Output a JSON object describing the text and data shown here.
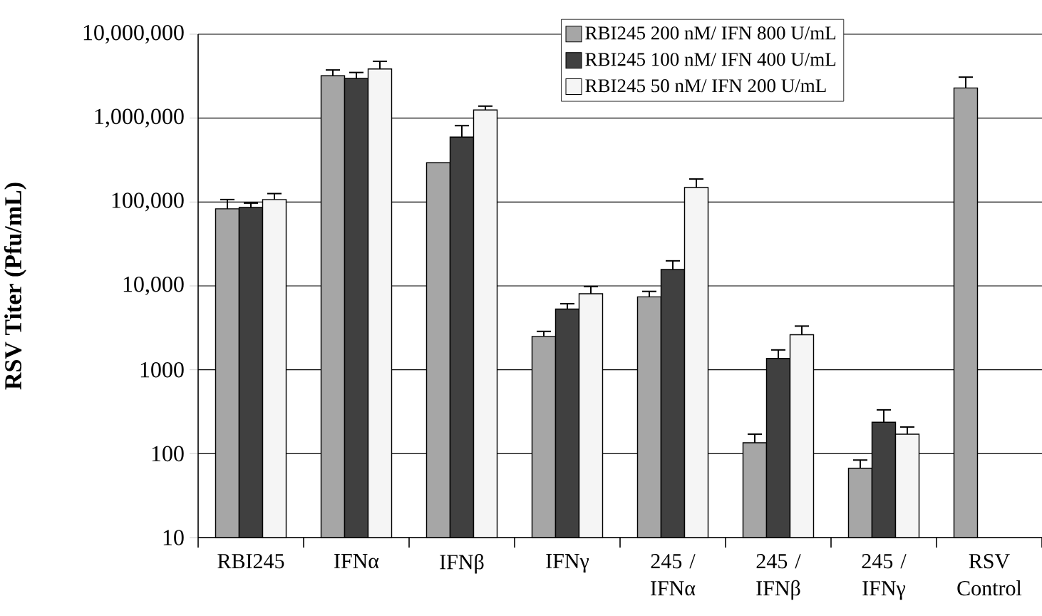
{
  "chart_data": {
    "type": "bar",
    "ylabel": "RSV Titer (Pfu/mL)",
    "categories": [
      "RBI245",
      "IFNα",
      "IFNβ",
      "IFNγ",
      "245 / IFNα",
      "245 / IFNβ",
      "245 / IFNγ",
      "RSV Control"
    ],
    "series": [
      {
        "name": "RBI245 200 nM/ IFN 800 U/mL",
        "color": "#a6a6a6",
        "values": [
          83000,
          3200000,
          294000,
          2500,
          7400,
          135,
          67,
          2290000
        ],
        "errors": [
          [
            83000,
            107000
          ],
          [
            3200000,
            3750000
          ],
          null,
          [
            2500,
            2870
          ],
          [
            7400,
            8600
          ],
          [
            135,
            171
          ],
          [
            67,
            84
          ],
          [
            2290000,
            3080000
          ]
        ]
      },
      {
        "name": "RBI245 100 nM/ IFN 400 U/mL",
        "color": "#404040",
        "values": [
          86000,
          2970000,
          594000,
          5300,
          15700,
          1365,
          237,
          null
        ],
        "errors": [
          [
            86000,
            97000
          ],
          [
            2970000,
            3500000
          ],
          [
            594000,
            813000
          ],
          [
            5300,
            6130
          ],
          [
            15700,
            19900
          ],
          [
            1365,
            1725
          ],
          [
            237,
            333
          ],
          null
        ]
      },
      {
        "name": "RBI245 50 nM/ IFN 200 U/mL",
        "color": "#f5f5f5",
        "values": [
          107000,
          3850000,
          1250000,
          8070,
          149000,
          2620,
          171,
          null
        ],
        "errors": [
          [
            107000,
            126000
          ],
          [
            3850000,
            4750000
          ],
          [
            1250000,
            1390000
          ],
          [
            8070,
            9830
          ],
          [
            149000,
            188000
          ],
          [
            2620,
            3320
          ],
          [
            171,
            208
          ],
          null
        ]
      }
    ],
    "log": "y",
    "ylim": [
      10,
      10000000
    ],
    "yticks": [
      10,
      100,
      1000,
      {
        "value": 10000,
        "label": "10,000"
      },
      {
        "value": 100000,
        "label": "100,000"
      },
      {
        "value": 1000000,
        "label": "1,000,000"
      },
      {
        "value": 10000000,
        "label": "10,000,000"
      }
    ],
    "grid": "y",
    "legend": "top right"
  }
}
